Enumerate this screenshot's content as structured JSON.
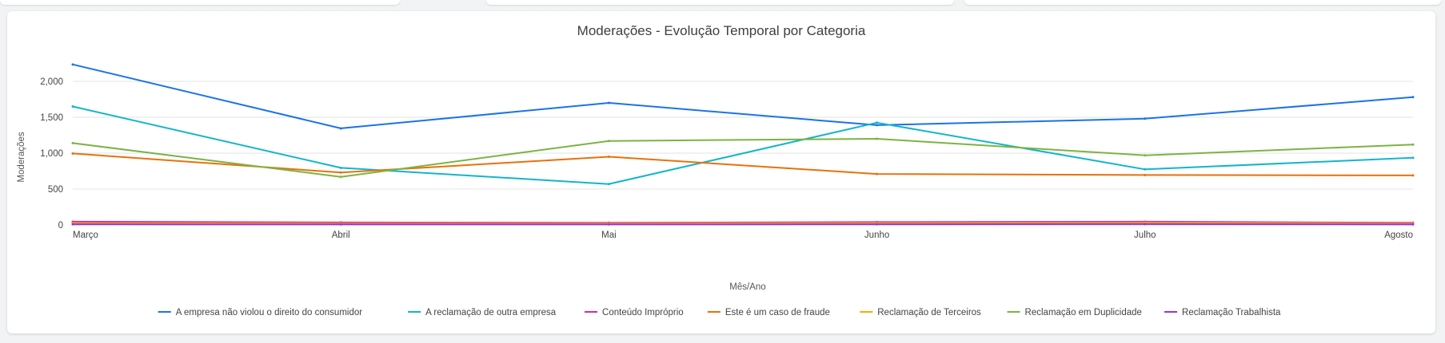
{
  "chart_data": {
    "type": "line",
    "title": "Moderações - Evolução Temporal por Categoria",
    "xlabel": "Mês/Ano",
    "ylabel": "Moderações",
    "categories": [
      "Março",
      "Abril",
      "Mai",
      "Junho",
      "Julho",
      "Agosto"
    ],
    "ylim": [
      0,
      2500
    ],
    "yticks": [
      0,
      500,
      1000,
      1500,
      2000
    ],
    "ytick_labels": [
      "0",
      "500",
      "1,000",
      "1,500",
      "2,000"
    ],
    "grid": true,
    "legend_position": "bottom",
    "series": [
      {
        "name": "A empresa não violou o direito do consumidor",
        "color": "#1a73e8",
        "values": [
          2235,
          1345,
          1700,
          1390,
          1480,
          1780
        ]
      },
      {
        "name": "A reclamação de outra empresa",
        "color": "#12b5cb",
        "values": [
          1650,
          795,
          570,
          1425,
          775,
          935
        ]
      },
      {
        "name": "Conteúdo Impróprio",
        "color": "#e52592",
        "values": [
          45,
          35,
          30,
          40,
          45,
          30
        ]
      },
      {
        "name": "Este é um caso de fraude",
        "color": "#e8710a",
        "values": [
          995,
          730,
          950,
          710,
          695,
          690
        ]
      },
      {
        "name": "Reclamação de Terceiros",
        "color": "#f9ab00",
        "values": [
          25,
          20,
          20,
          25,
          30,
          20
        ]
      },
      {
        "name": "Reclamação em Duplicidade",
        "color": "#7cb342",
        "values": [
          1140,
          670,
          1170,
          1200,
          970,
          1120
        ]
      },
      {
        "name": "Reclamação Trabalhista",
        "color": "#9334e6",
        "values": [
          10,
          8,
          8,
          10,
          12,
          8
        ]
      }
    ]
  }
}
